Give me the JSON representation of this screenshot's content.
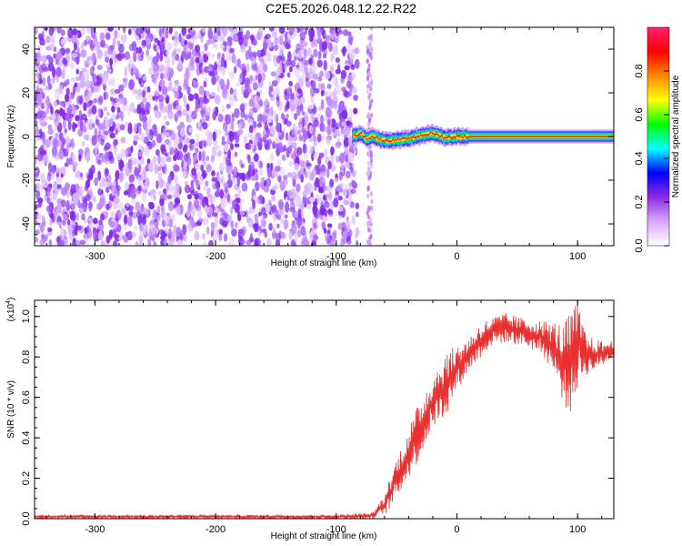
{
  "title": "C2E5.2026.048.12.22.R22",
  "chart_data": [
    {
      "type": "heatmap",
      "xlabel": "Height of straight line (km)",
      "ylabel": "Frequency (Hz)",
      "xlim": [
        -350,
        130
      ],
      "ylim": [
        -50,
        50
      ],
      "x_ticks": [
        -300,
        -200,
        -100,
        0,
        100
      ],
      "y_ticks": [
        -40,
        -20,
        0,
        20,
        40
      ],
      "colorbar": {
        "label": "Normalized spectral amplitude",
        "range": [
          0,
          1
        ],
        "ticks": [
          "0.0",
          "0.2",
          "0.4",
          "0.6",
          "0.8"
        ],
        "tick_values": [
          0.0,
          0.2,
          0.4,
          0.6,
          0.8
        ],
        "colors": [
          "#ffffff",
          "#d9a8ff",
          "#8a2be2",
          "#0000ff",
          "#00ffff",
          "#00ff00",
          "#ffff00",
          "#ff8800",
          "#ff0000",
          "#ff2070"
        ]
      },
      "noise_region_x": [
        -350,
        -72
      ],
      "signal_onset_x": -87,
      "ridge": {
        "x": [
          -87,
          -80,
          -75,
          -70,
          -60,
          -50,
          -40,
          -30,
          -20,
          -10,
          0,
          10,
          130
        ],
        "y": [
          0,
          1.5,
          -1,
          0,
          -2,
          -1.5,
          -1,
          0.5,
          1.5,
          -0.5,
          0,
          0,
          0
        ]
      }
    },
    {
      "type": "line",
      "xlabel": "Height of straight line (km)",
      "ylabel": "SNR (10 * v/v)",
      "y_multiplier": "(x10",
      "y_multiplier_exp": "4",
      "y_multiplier_close": ")",
      "xlim": [
        -350,
        130
      ],
      "ylim": [
        0,
        1.08
      ],
      "x_ticks": [
        -300,
        -200,
        -100,
        0,
        100
      ],
      "y_ticks": [
        0.0,
        0.2,
        0.4,
        0.6,
        0.8,
        1.0
      ],
      "y_tick_labels": [
        "0.0",
        "0.2",
        "0.4",
        "0.6",
        "0.8",
        "1.0"
      ],
      "color": "#e83030",
      "envelope": {
        "x": [
          -350,
          -100,
          -70,
          -60,
          -55,
          -50,
          -40,
          -30,
          -20,
          -10,
          0,
          10,
          20,
          30,
          40,
          50,
          60,
          70,
          80,
          85,
          90,
          95,
          100,
          105,
          110,
          120,
          130
        ],
        "upper": [
          0.02,
          0.02,
          0.03,
          0.12,
          0.22,
          0.3,
          0.45,
          0.6,
          0.72,
          0.82,
          0.86,
          0.9,
          0.97,
          1.0,
          1.02,
          1.0,
          0.99,
          0.98,
          0.98,
          0.97,
          0.98,
          1.05,
          1.08,
          0.95,
          0.9,
          0.88,
          0.88
        ],
        "lower": [
          0.0,
          0.0,
          0.0,
          0.02,
          0.05,
          0.1,
          0.2,
          0.3,
          0.45,
          0.5,
          0.63,
          0.73,
          0.8,
          0.86,
          0.87,
          0.86,
          0.84,
          0.82,
          0.72,
          0.62,
          0.55,
          0.5,
          0.65,
          0.7,
          0.72,
          0.75,
          0.8
        ]
      }
    }
  ]
}
